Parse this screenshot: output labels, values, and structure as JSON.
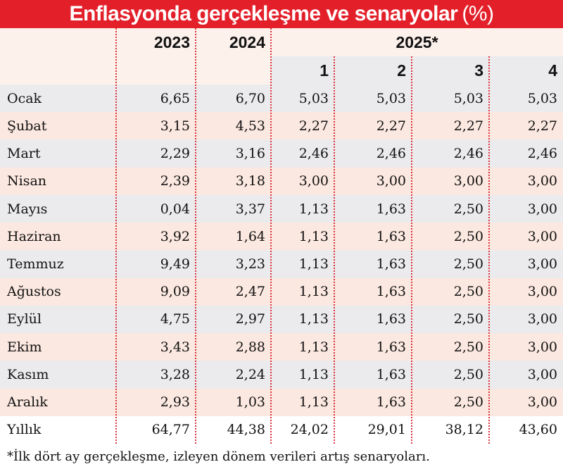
{
  "title": {
    "text": "Enflasyonda gerçekleşme ve senaryolar",
    "unit": "(%)"
  },
  "header": {
    "years": [
      "2023",
      "2024",
      "2025*"
    ],
    "scenarios": [
      "1",
      "2",
      "3",
      "4"
    ]
  },
  "table": {
    "rows": [
      [
        "Ocak",
        "6,65",
        "6,70",
        "5,03",
        "5,03",
        "5,03",
        "5,03"
      ],
      [
        "Şubat",
        "3,15",
        "4,53",
        "2,27",
        "2,27",
        "2,27",
        "2,27"
      ],
      [
        "Mart",
        "2,29",
        "3,16",
        "2,46",
        "2,46",
        "2,46",
        "2,46"
      ],
      [
        "Nisan",
        "2,39",
        "3,18",
        "3,00",
        "3,00",
        "3,00",
        "3,00"
      ],
      [
        "Mayıs",
        "0,04",
        "3,37",
        "1,13",
        "1,63",
        "2,50",
        "3,00"
      ],
      [
        "Haziran",
        "3,92",
        "1,64",
        "1,13",
        "1,63",
        "2,50",
        "3,00"
      ],
      [
        "Temmuz",
        "9,49",
        "3,23",
        "1,13",
        "1,63",
        "2,50",
        "3,00"
      ],
      [
        "Ağustos",
        "9,09",
        "2,47",
        "1,13",
        "1,63",
        "2,50",
        "3,00"
      ],
      [
        "Eylül",
        "4,75",
        "2,97",
        "1,13",
        "1,63",
        "2,50",
        "3,00"
      ],
      [
        "Ekim",
        "3,43",
        "2,88",
        "1,13",
        "1,63",
        "2,50",
        "3,00"
      ],
      [
        "Kasım",
        "3,28",
        "2,24",
        "1,13",
        "1,63",
        "2,50",
        "3,00"
      ],
      [
        "Aralık",
        "2,93",
        "1,03",
        "1,13",
        "1,63",
        "2,50",
        "3,00"
      ],
      [
        "Yıllık",
        "64,77",
        "44,38",
        "24,02",
        "29,01",
        "38,12",
        "43,60"
      ]
    ]
  },
  "footnote": "*İlk dört ay gerçekleşme, izleyen dönem verileri artış senaryoları."
}
